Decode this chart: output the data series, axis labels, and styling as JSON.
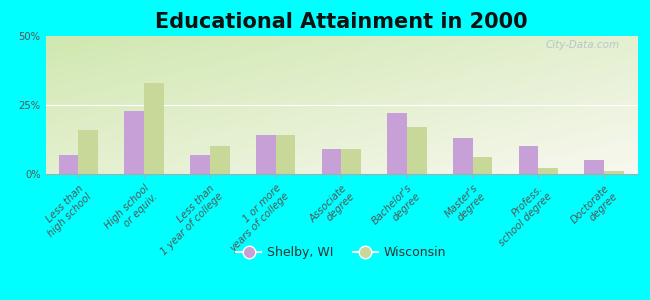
{
  "title": "Educational Attainment in 2000",
  "categories": [
    "Less than\nhigh school",
    "High school\nor equiv.",
    "Less than\n1 year of college",
    "1 or more\nyears of college",
    "Associate\ndegree",
    "Bachelor's\ndegree",
    "Master's\ndegree",
    "Profess.\nschool degree",
    "Doctorate\ndegree"
  ],
  "shelby_values": [
    7,
    23,
    7,
    14,
    9,
    22,
    13,
    10,
    5
  ],
  "wisconsin_values": [
    16,
    33,
    10,
    14,
    9,
    17,
    6,
    2,
    1
  ],
  "shelby_color": "#c8a0d8",
  "wisconsin_color": "#c8d898",
  "background_color": "#00ffff",
  "ylim": [
    0,
    50
  ],
  "yticks": [
    0,
    25,
    50
  ],
  "ytick_labels": [
    "0%",
    "25%",
    "50%"
  ],
  "bar_width": 0.3,
  "legend_labels": [
    "Shelby, WI",
    "Wisconsin"
  ],
  "watermark": "City-Data.com",
  "title_fontsize": 15,
  "tick_fontsize": 7.2,
  "grid_color": "#e0e8c8",
  "grad_color_tl": "#d0e8b0",
  "grad_color_br": "#f8f8f0"
}
